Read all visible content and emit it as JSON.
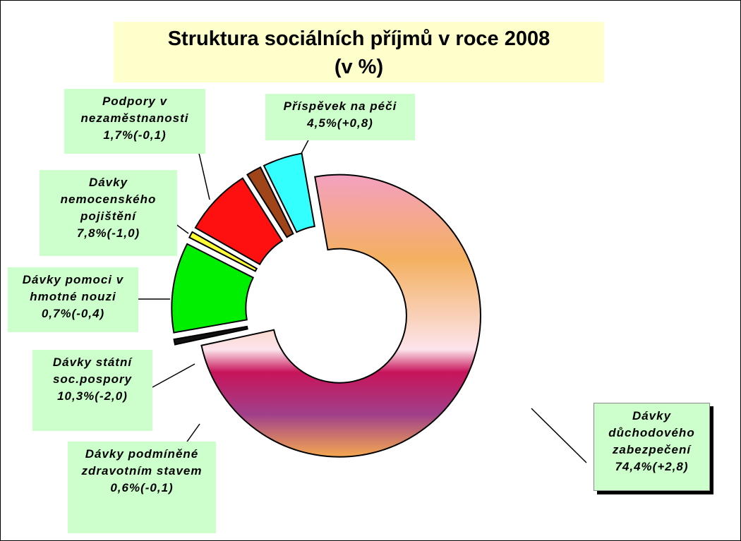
{
  "chart_data": {
    "type": "donut",
    "title": "Struktura sociálních příjmů v roce  2008",
    "subtitle": "(v %)",
    "categories": [
      "Dávky důchodového zabezpečení",
      "Dávky podmíněné zdravotním stavem",
      "Dávky státní soc.pospory",
      "Dávky pomoci v hmotné nouzi",
      "Dávky nemocenského pojištění",
      "Podpory v nezaměstnanosti",
      "Příspěvek na péči"
    ],
    "values": [
      74.4,
      0.6,
      10.3,
      0.7,
      7.8,
      1.7,
      4.5
    ],
    "value_labels": [
      "74,4%",
      "0,6%",
      "10,3%",
      "0,7%",
      "7,8%",
      "1,7%",
      "4,5%"
    ],
    "change_labels": [
      "(+2,8)",
      "(-0,1)",
      "(-2,0)",
      "(-0,4)",
      "(-1,0)",
      "(-0,1)",
      "(+0,8)"
    ],
    "colors": [
      "gradient",
      "#111111",
      "#00ee00",
      "#ffff33",
      "#ff1010",
      "#a0441a",
      "#33ffff"
    ]
  }
}
